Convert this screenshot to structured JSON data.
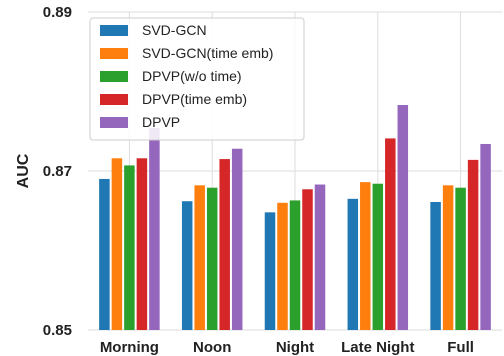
{
  "chart_data": {
    "type": "bar",
    "title": "",
    "xlabel": "",
    "ylabel": "AUC",
    "categories": [
      "Morning",
      "Noon",
      "Night",
      "Late Night",
      "Full"
    ],
    "series": [
      {
        "name": "SVD-GCN",
        "values": [
          0.869,
          0.8662,
          0.8648,
          0.8665,
          0.8661
        ]
      },
      {
        "name": "SVD-GCN(time emb)",
        "values": [
          0.8716,
          0.8682,
          0.866,
          0.8686,
          0.8682
        ]
      },
      {
        "name": "DPVP(w/o time)",
        "values": [
          0.8707,
          0.8679,
          0.8663,
          0.8684,
          0.8679
        ]
      },
      {
        "name": "DPVP(time emb)",
        "values": [
          0.8716,
          0.8715,
          0.8677,
          0.8741,
          0.8714
        ]
      },
      {
        "name": "DPVP",
        "values": [
          0.8754,
          0.8728,
          0.8683,
          0.8783,
          0.8734
        ]
      }
    ],
    "colors": [
      "#1f77b4",
      "#ff7f0e",
      "#2ca02c",
      "#d62728",
      "#9467bd"
    ],
    "ylim": [
      0.85,
      0.89
    ],
    "yticks": [
      "0.85",
      "0.87",
      "0.89"
    ],
    "ytick_values": [
      0.85,
      0.87,
      0.89
    ],
    "grid": true,
    "legend_position": "top-left"
  }
}
